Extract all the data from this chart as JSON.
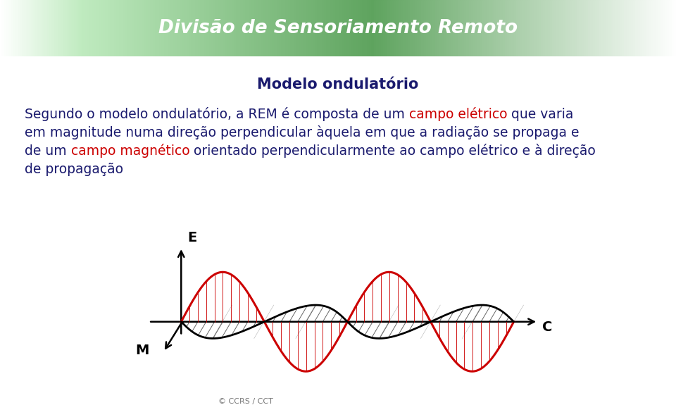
{
  "title": "Modelo ondulatório",
  "title_color": "#1a1a6e",
  "title_fontsize": 15,
  "bg_color": "#ffffff",
  "header_text": "Divisão de Sensoriamento Remoto",
  "header_text_color": "#ffffff",
  "body_fontsize": 13.5,
  "body_text_color": "#1a1a6e",
  "highlight_color": "#cc0000",
  "wave_color_E": "#cc0000",
  "wave_color_M": "#000000",
  "caption": "© CCRS / CCT",
  "caption_color": "#777777",
  "caption_fontsize": 8,
  "line1_normal": "Segundo o modelo ondulatório, a REM é composta de um ",
  "line1_red": "campo elétrico",
  "line1_end": " que varia",
  "line2": "em magnitude numa direção perpendicular àquela em que a radiação se propaga e",
  "line3_start": "de um ",
  "line3_red": "campo magnético",
  "line3_end": " orientado perpendicularmente ao campo elétrico e à direção",
  "line4": "de propagação"
}
